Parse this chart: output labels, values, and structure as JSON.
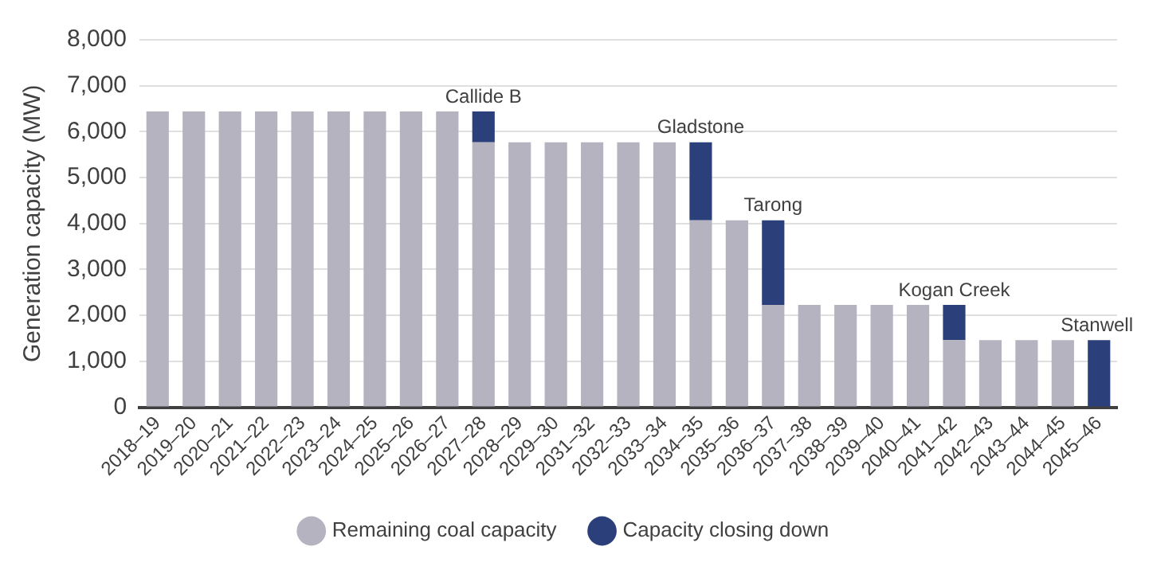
{
  "chart_data": {
    "type": "bar",
    "stacked": true,
    "ylabel": "Generation capacity (MW)",
    "categories": [
      "2018–19",
      "2019–20",
      "2020–21",
      "2021–22",
      "2022–23",
      "2023–24",
      "2024–25",
      "2025–26",
      "2026–27",
      "2027–28",
      "2028–29",
      "2029–30",
      "2031–32",
      "2032–33",
      "2033–34",
      "2034–35",
      "2035–36",
      "2036–37",
      "2037–38",
      "2038–39",
      "2039–40",
      "2040–41",
      "2041–42",
      "2042–43",
      "2043–44",
      "2044–45",
      "2045–46"
    ],
    "series": [
      {
        "name": "Remaining coal capacity",
        "color": "#b5b3bf",
        "values": [
          6440,
          6440,
          6440,
          6440,
          6440,
          6440,
          6440,
          6440,
          6440,
          5770,
          5770,
          5770,
          5770,
          5770,
          5770,
          4070,
          4070,
          2230,
          2230,
          2230,
          2230,
          2230,
          1460,
          1460,
          1460,
          1460,
          null
        ]
      },
      {
        "name": "Capacity closing down",
        "color": "#2b3f7a",
        "values": [
          null,
          null,
          null,
          null,
          null,
          null,
          null,
          null,
          null,
          670,
          null,
          null,
          null,
          null,
          null,
          1700,
          null,
          1840,
          null,
          null,
          null,
          null,
          770,
          null,
          null,
          null,
          1460
        ]
      }
    ],
    "ylim": [
      0,
      8000
    ],
    "yticks": [
      0,
      {
        "value": 1000,
        "label": "1,000"
      },
      {
        "value": 2000,
        "label": "2,000"
      },
      {
        "value": 3000,
        "label": "3,000"
      },
      {
        "value": 4000,
        "label": "4,000"
      },
      {
        "value": 5000,
        "label": "5,000"
      },
      {
        "value": 6000,
        "label": "6,000"
      },
      {
        "value": 7000,
        "label": "7,000"
      },
      {
        "value": 8000,
        "label": "8,000"
      }
    ],
    "grid": "y",
    "legend": "bottom",
    "annotations": [
      {
        "text": "Callide B",
        "x": "2027–28",
        "y": 6440
      },
      {
        "text": "Gladstone",
        "x": "2034–35",
        "y": 5770
      },
      {
        "text": "Tarong",
        "x": "2036–37",
        "y": 4070
      },
      {
        "text": "Kogan Creek",
        "x": "2041–42",
        "y": 2230
      },
      {
        "text": "Stanwell",
        "x": "2045–46",
        "y": 1460
      }
    ]
  }
}
